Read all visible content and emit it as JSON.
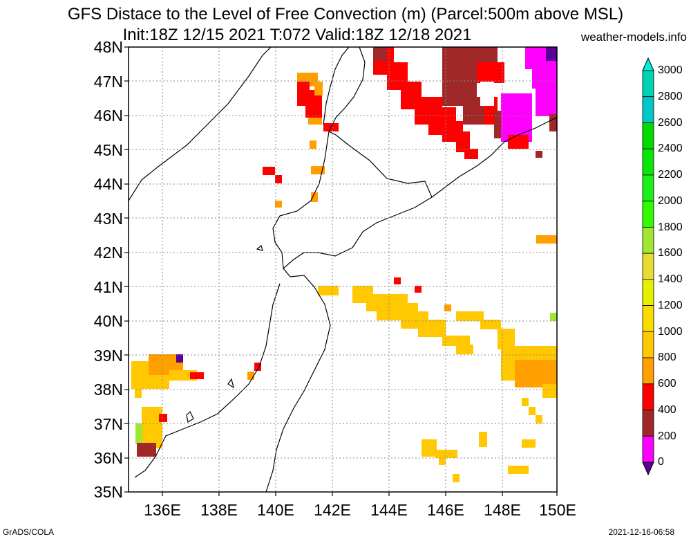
{
  "header": {
    "title_line1": "GFS Distace to the Level of Free Convection (m) (Parcel:500m above MSL)",
    "title_line2": "Init:18Z 12/15 2021 T:072 Valid:18Z 12/18 2021",
    "site": "weather-models.info"
  },
  "axes": {
    "lat_labels": [
      "48N",
      "47N",
      "46N",
      "45N",
      "44N",
      "43N",
      "42N",
      "41N",
      "40N",
      "39N",
      "38N",
      "37N",
      "36N",
      "35N"
    ],
    "lon_labels": [
      "136E",
      "138E",
      "140E",
      "142E",
      "144E",
      "146E",
      "148E",
      "150E"
    ]
  },
  "colorbar": {
    "labels": [
      "3000",
      "2800",
      "2600",
      "2400",
      "2200",
      "2000",
      "1800",
      "1600",
      "1400",
      "1200",
      "1000",
      "800",
      "600",
      "400",
      "200",
      "0"
    ],
    "colors": [
      "#00f0dc",
      "#00d2b4",
      "#00c8c8",
      "#00dc00",
      "#0ae60a",
      "#1ef01e",
      "#32fa00",
      "#a0e632",
      "#e6dc32",
      "#e6f000",
      "#fadc00",
      "#ffc800",
      "#ffa000",
      "#ff0000",
      "#a02828",
      "#ff00ff",
      "#5a0096"
    ]
  },
  "footer": {
    "left": "GrADS/COLA",
    "right": "2021-12-16-06:58"
  }
}
